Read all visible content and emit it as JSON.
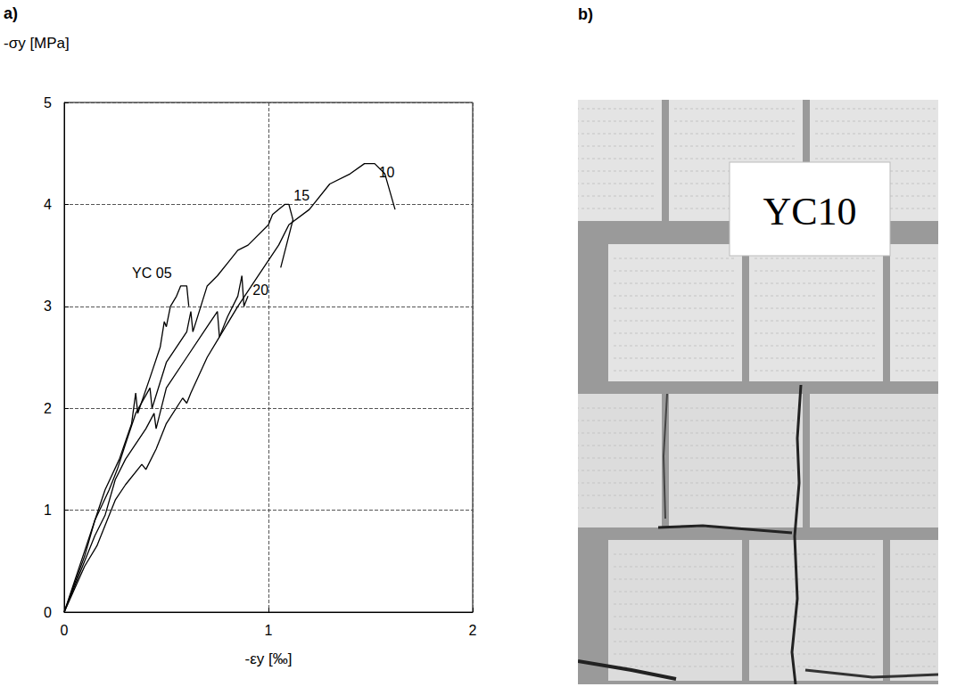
{
  "chart_data": {
    "type": "line",
    "panel": "a)",
    "y_label": "-σy [MPa]",
    "x_label": "-εy [‰]",
    "xlim": [
      0,
      2
    ],
    "xticks": [
      0,
      1,
      2
    ],
    "ylim": [
      0,
      5
    ],
    "yticks": [
      0,
      1,
      2,
      3,
      4,
      5
    ],
    "grid": true,
    "series": [
      {
        "name": "YC 05",
        "color": "#000000",
        "x": [
          0,
          0.1,
          0.15,
          0.2,
          0.27,
          0.33,
          0.35,
          0.36,
          0.42,
          0.47,
          0.49,
          0.5,
          0.52,
          0.55,
          0.57,
          0.6,
          0.61
        ],
        "values": [
          0,
          0.6,
          0.9,
          1.2,
          1.5,
          1.85,
          2.15,
          1.95,
          2.3,
          2.6,
          2.85,
          2.8,
          3.0,
          3.1,
          3.2,
          3.2,
          3.0
        ]
      },
      {
        "name": "10",
        "color": "#000000",
        "x": [
          0,
          0.1,
          0.15,
          0.2,
          0.25,
          0.3,
          0.4,
          0.44,
          0.45,
          0.5,
          0.6,
          0.7,
          0.75,
          0.76,
          0.85,
          0.95,
          1.05,
          1.1,
          1.2,
          1.3,
          1.4,
          1.47,
          1.52,
          1.57,
          1.62
        ],
        "values": [
          0,
          0.5,
          0.75,
          0.95,
          1.3,
          1.5,
          1.8,
          1.95,
          1.8,
          2.2,
          2.5,
          2.8,
          2.95,
          2.7,
          3.0,
          3.3,
          3.6,
          3.8,
          3.95,
          4.2,
          4.3,
          4.4,
          4.4,
          4.3,
          3.95
        ]
      },
      {
        "name": "15",
        "color": "#000000",
        "x": [
          0,
          0.1,
          0.15,
          0.22,
          0.26,
          0.3,
          0.35,
          0.42,
          0.43,
          0.5,
          0.6,
          0.62,
          0.63,
          0.7,
          0.75,
          0.85,
          0.9,
          1.0,
          1.02,
          1.05,
          1.08,
          1.1,
          1.12,
          1.06
        ],
        "values": [
          0,
          0.55,
          0.9,
          1.2,
          1.4,
          1.65,
          1.95,
          2.2,
          2.0,
          2.45,
          2.75,
          2.95,
          2.75,
          3.2,
          3.3,
          3.55,
          3.6,
          3.8,
          3.9,
          3.95,
          4.0,
          4.0,
          3.85,
          3.38
        ]
      },
      {
        "name": "20",
        "color": "#000000",
        "x": [
          0,
          0.1,
          0.16,
          0.2,
          0.25,
          0.3,
          0.38,
          0.4,
          0.45,
          0.5,
          0.58,
          0.6,
          0.62,
          0.7,
          0.76,
          0.8,
          0.85,
          0.87,
          0.88,
          0.9
        ],
        "values": [
          0,
          0.45,
          0.65,
          0.85,
          1.1,
          1.25,
          1.45,
          1.4,
          1.6,
          1.85,
          2.1,
          2.05,
          2.15,
          2.5,
          2.7,
          2.9,
          3.1,
          3.3,
          3.0,
          3.1
        ]
      }
    ]
  },
  "photo": {
    "panel": "b)",
    "label": "YC10"
  }
}
